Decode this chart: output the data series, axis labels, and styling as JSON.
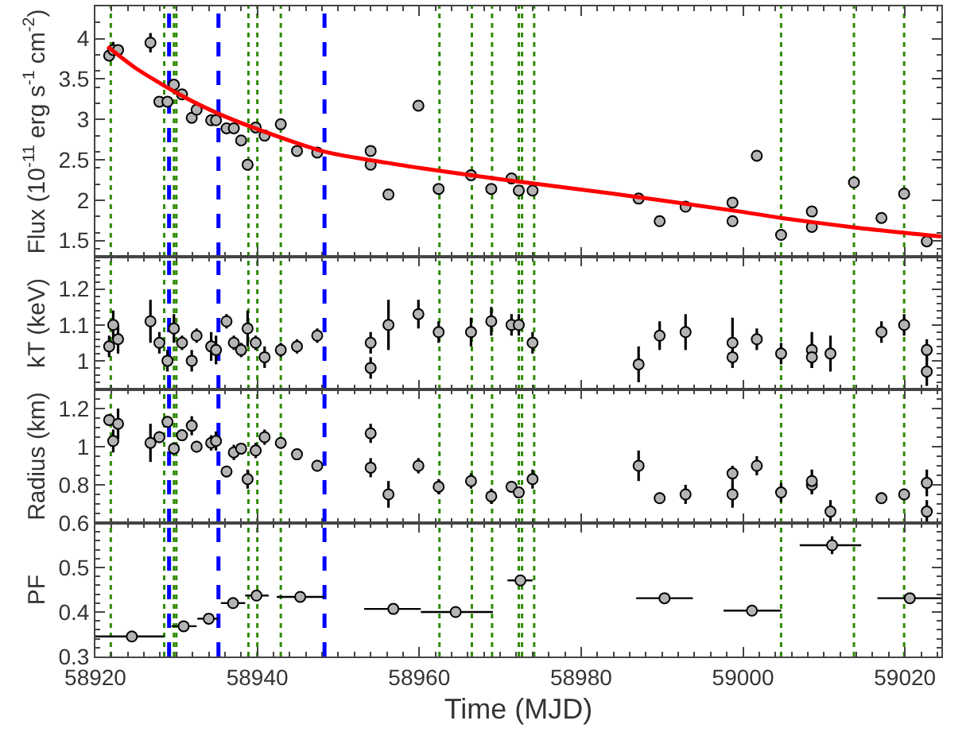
{
  "chart_data": [
    {
      "type": "scatter",
      "ylabel": "Flux (10$^{-11}$ erg s$^{-1}$ cm$^{-2}$)",
      "xlim": [
        58920,
        59024.5
      ],
      "xticks": [
        58920,
        58940,
        58960,
        58980,
        59000,
        59020
      ],
      "ylim": [
        1.3,
        4.4
      ],
      "yticks": [
        1.5,
        2,
        2.5,
        3,
        3.5,
        4
      ],
      "tick_labels": "y",
      "marker": "circle",
      "grid": false,
      "series": [
        {
          "color": "#b4b4b4",
          "x": [
            58921.7,
            58922.2,
            58922.8,
            58926.8,
            58927.9,
            58928.9,
            58929.7,
            58930.7,
            58931.9,
            58932.5,
            58934.3,
            58934.9,
            58936.2,
            58937.1,
            58938.0,
            58938.8,
            58939.8,
            58940.9,
            58942.9,
            58944.9,
            58947.4,
            58954.0,
            58954.0,
            58956.2,
            58959.9,
            58962.4,
            58966.4,
            58968.9,
            58971.4,
            58972.3,
            58974.0,
            58987.1,
            58989.7,
            58992.9,
            58998.7,
            58998.7,
            59001.7,
            59004.7,
            59008.5,
            59008.5,
            59013.7,
            59017.1,
            59019.9,
            59022.7
          ],
          "values": [
            3.79,
            3.86,
            3.86,
            3.95,
            3.22,
            3.22,
            3.43,
            3.31,
            3.02,
            3.12,
            2.99,
            2.99,
            2.89,
            2.89,
            2.74,
            2.44,
            2.9,
            2.8,
            2.94,
            2.61,
            2.59,
            2.61,
            2.44,
            2.07,
            3.17,
            2.14,
            2.31,
            2.14,
            2.27,
            2.12,
            2.12,
            2.02,
            1.74,
            1.92,
            1.97,
            1.74,
            2.55,
            1.57,
            1.86,
            1.67,
            2.22,
            1.78,
            2.08,
            1.49
          ],
          "errors": [
            0.03,
            0.1,
            0.05,
            0.12,
            0.06,
            0.03,
            0.04,
            0.03,
            0.04,
            0.03,
            0.03,
            0.03,
            0.03,
            0.03,
            0.03,
            0.05,
            0.03,
            0.03,
            0.04,
            0.03,
            0.03,
            0.03,
            0.04,
            0.07,
            0.05,
            0.03,
            0.04,
            0.03,
            0.04,
            0.03,
            0.03,
            0.04,
            0.03,
            0.03,
            0.03,
            0.04,
            0.03,
            0.03,
            0.03,
            0.03,
            0.04,
            0.03,
            0.03,
            0.03
          ]
        },
        {
          "type": "line",
          "color": "#ff0000",
          "marker": "none",
          "line_style": "solid",
          "x": [
            58921.5,
            58924.9,
            58930,
            58935,
            58940,
            58948.3,
            58960,
            58970,
            58984,
            58999.6,
            59004.7,
            59014,
            59024.5
          ],
          "values": [
            3.9,
            3.64,
            3.33,
            3.08,
            2.88,
            2.6,
            2.4,
            2.26,
            2.08,
            1.86,
            1.78,
            1.66,
            1.55
          ]
        }
      ],
      "ref_lines": [
        {
          "axis": "x",
          "value": 58921.9,
          "color": "#2e8b00",
          "line_style": "dotted"
        },
        {
          "axis": "x",
          "value": 58928.5,
          "color": "#2e8b00",
          "line_style": "dotted"
        },
        {
          "axis": "x",
          "value": 58929.7,
          "color": "#2e8b00",
          "line_style": "dotted"
        },
        {
          "axis": "x",
          "value": 58930.0,
          "color": "#2e8b00",
          "line_style": "dotted"
        },
        {
          "axis": "x",
          "value": 58938.9,
          "color": "#2e8b00",
          "line_style": "dotted"
        },
        {
          "axis": "x",
          "value": 58940.0,
          "color": "#2e8b00",
          "line_style": "dotted"
        },
        {
          "axis": "x",
          "value": 58942.9,
          "color": "#2e8b00",
          "line_style": "dotted"
        },
        {
          "axis": "x",
          "value": 58962.5,
          "color": "#2e8b00",
          "line_style": "dotted"
        },
        {
          "axis": "x",
          "value": 58966.5,
          "color": "#2e8b00",
          "line_style": "dotted"
        },
        {
          "axis": "x",
          "value": 58969.0,
          "color": "#2e8b00",
          "line_style": "dotted"
        },
        {
          "axis": "x",
          "value": 58972.3,
          "color": "#2e8b00",
          "line_style": "dotted"
        },
        {
          "axis": "x",
          "value": 58972.7,
          "color": "#2e8b00",
          "line_style": "dotted"
        },
        {
          "axis": "x",
          "value": 58974.2,
          "color": "#2e8b00",
          "line_style": "dotted"
        },
        {
          "axis": "x",
          "value": 59004.7,
          "color": "#2e8b00",
          "line_style": "dotted"
        },
        {
          "axis": "x",
          "value": 59013.7,
          "color": "#2e8b00",
          "line_style": "dotted"
        },
        {
          "axis": "x",
          "value": 59019.9,
          "color": "#2e8b00",
          "line_style": "dotted"
        },
        {
          "axis": "x",
          "value": 58929.1,
          "color": "#0000ff",
          "line_style": "dashed"
        },
        {
          "axis": "x",
          "value": 58935.2,
          "color": "#0000ff",
          "line_style": "dashed"
        },
        {
          "axis": "x",
          "value": 58948.3,
          "color": "#0000ff",
          "line_style": "dashed"
        }
      ]
    },
    {
      "type": "scatter",
      "ylabel": "kT (keV)",
      "xlim": [
        58920,
        59024.5
      ],
      "xticks": [
        58920,
        58940,
        58960,
        58980,
        59000,
        59020
      ],
      "ylim": [
        0.92,
        1.29
      ],
      "yticks": [
        1,
        1.1,
        1.2
      ],
      "tick_labels": "y",
      "marker": "circle",
      "grid": false,
      "series": [
        {
          "color": "#b4b4b4",
          "x": [
            58921.7,
            58922.2,
            58922.8,
            58926.8,
            58927.9,
            58928.9,
            58929.7,
            58930.7,
            58931.9,
            58932.5,
            58934.3,
            58934.9,
            58936.2,
            58937.1,
            58938.0,
            58938.8,
            58939.8,
            58940.9,
            58942.9,
            58944.9,
            58947.4,
            58954.0,
            58954.0,
            58956.2,
            58959.9,
            58962.4,
            58966.4,
            58968.9,
            58971.4,
            58972.3,
            58974.0,
            58987.1,
            58989.7,
            58992.9,
            58998.7,
            58998.7,
            59001.7,
            59004.7,
            59008.5,
            59008.5,
            59010.8,
            59017.1,
            59019.9,
            59022.7,
            59022.7
          ],
          "values": [
            1.04,
            1.1,
            1.06,
            1.11,
            1.05,
            1.0,
            1.09,
            1.05,
            1.0,
            1.07,
            1.04,
            1.03,
            1.11,
            1.05,
            1.03,
            1.09,
            1.05,
            1.01,
            1.03,
            1.04,
            1.07,
            1.05,
            0.98,
            1.1,
            1.13,
            1.08,
            1.08,
            1.11,
            1.1,
            1.1,
            1.05,
            0.99,
            1.07,
            1.08,
            1.05,
            1.01,
            1.06,
            1.02,
            1.03,
            1.01,
            1.02,
            1.08,
            1.1,
            1.03,
            0.97
          ],
          "errors": [
            0.03,
            0.04,
            0.04,
            0.06,
            0.03,
            0.03,
            0.04,
            0.02,
            0.03,
            0.02,
            0.04,
            0.04,
            0.02,
            0.02,
            0.02,
            0.05,
            0.02,
            0.03,
            0.02,
            0.02,
            0.02,
            0.03,
            0.03,
            0.07,
            0.04,
            0.03,
            0.04,
            0.04,
            0.03,
            0.03,
            0.03,
            0.05,
            0.04,
            0.05,
            0.07,
            0.02,
            0.03,
            0.03,
            0.05,
            0.03,
            0.05,
            0.03,
            0.03,
            0.03,
            0.04
          ]
        }
      ],
      "ref_lines": [
        {
          "axis": "x",
          "value": 58921.9,
          "color": "#2e8b00",
          "line_style": "dotted"
        },
        {
          "axis": "x",
          "value": 58928.5,
          "color": "#2e8b00",
          "line_style": "dotted"
        },
        {
          "axis": "x",
          "value": 58929.7,
          "color": "#2e8b00",
          "line_style": "dotted"
        },
        {
          "axis": "x",
          "value": 58930.0,
          "color": "#2e8b00",
          "line_style": "dotted"
        },
        {
          "axis": "x",
          "value": 58938.9,
          "color": "#2e8b00",
          "line_style": "dotted"
        },
        {
          "axis": "x",
          "value": 58940.0,
          "color": "#2e8b00",
          "line_style": "dotted"
        },
        {
          "axis": "x",
          "value": 58942.9,
          "color": "#2e8b00",
          "line_style": "dotted"
        },
        {
          "axis": "x",
          "value": 58962.5,
          "color": "#2e8b00",
          "line_style": "dotted"
        },
        {
          "axis": "x",
          "value": 58966.5,
          "color": "#2e8b00",
          "line_style": "dotted"
        },
        {
          "axis": "x",
          "value": 58969.0,
          "color": "#2e8b00",
          "line_style": "dotted"
        },
        {
          "axis": "x",
          "value": 58972.3,
          "color": "#2e8b00",
          "line_style": "dotted"
        },
        {
          "axis": "x",
          "value": 58972.7,
          "color": "#2e8b00",
          "line_style": "dotted"
        },
        {
          "axis": "x",
          "value": 58974.2,
          "color": "#2e8b00",
          "line_style": "dotted"
        },
        {
          "axis": "x",
          "value": 59004.7,
          "color": "#2e8b00",
          "line_style": "dotted"
        },
        {
          "axis": "x",
          "value": 59013.7,
          "color": "#2e8b00",
          "line_style": "dotted"
        },
        {
          "axis": "x",
          "value": 59019.9,
          "color": "#2e8b00",
          "line_style": "dotted"
        },
        {
          "axis": "x",
          "value": 58929.1,
          "color": "#0000ff",
          "line_style": "dashed"
        },
        {
          "axis": "x",
          "value": 58935.2,
          "color": "#0000ff",
          "line_style": "dashed"
        },
        {
          "axis": "x",
          "value": 58948.3,
          "color": "#0000ff",
          "line_style": "dashed"
        }
      ]
    },
    {
      "type": "scatter",
      "ylabel": "Radius (km)",
      "xlim": [
        58920,
        59024.5
      ],
      "xticks": [
        58920,
        58940,
        58960,
        58980,
        59000,
        59020
      ],
      "ylim": [
        0.6,
        1.3
      ],
      "yticks": [
        0.6,
        0.8,
        1,
        1.2
      ],
      "tick_labels": "y",
      "marker": "circle",
      "grid": false,
      "series": [
        {
          "color": "#b4b4b4",
          "x": [
            58921.7,
            58922.2,
            58922.8,
            58926.8,
            58927.9,
            58928.9,
            58929.7,
            58930.7,
            58931.9,
            58932.5,
            58934.3,
            58934.9,
            58936.2,
            58937.1,
            58938.0,
            58938.8,
            58939.8,
            58940.9,
            58942.9,
            58944.9,
            58947.4,
            58954.0,
            58954.0,
            58956.2,
            58959.9,
            58962.4,
            58966.4,
            58968.9,
            58971.4,
            58972.3,
            58974.0,
            58987.1,
            58989.7,
            58992.9,
            58998.7,
            58998.7,
            59001.7,
            59004.7,
            59008.5,
            59008.5,
            59010.8,
            59017.1,
            59019.9,
            59022.7,
            59022.7
          ],
          "values": [
            1.14,
            1.03,
            1.12,
            1.02,
            1.05,
            1.13,
            0.99,
            1.06,
            1.11,
            1.0,
            1.02,
            1.03,
            0.87,
            0.97,
            0.99,
            0.83,
            0.98,
            1.05,
            1.02,
            0.96,
            0.9,
            1.07,
            0.89,
            0.75,
            0.9,
            0.79,
            0.82,
            0.74,
            0.79,
            0.76,
            0.83,
            0.9,
            0.73,
            0.75,
            0.86,
            0.75,
            0.9,
            0.76,
            0.8,
            0.82,
            0.66,
            0.73,
            0.75,
            0.81,
            0.66
          ],
          "errors": [
            0.03,
            0.06,
            0.08,
            0.1,
            0.03,
            0.03,
            0.03,
            0.03,
            0.05,
            0.03,
            0.04,
            0.05,
            0.03,
            0.04,
            0.03,
            0.05,
            0.04,
            0.04,
            0.03,
            0.03,
            0.03,
            0.05,
            0.05,
            0.07,
            0.04,
            0.04,
            0.04,
            0.04,
            0.03,
            0.03,
            0.05,
            0.08,
            0.03,
            0.05,
            0.04,
            0.07,
            0.05,
            0.05,
            0.05,
            0.06,
            0.06,
            0.03,
            0.03,
            0.07,
            0.06
          ]
        }
      ],
      "ref_lines": [
        {
          "axis": "x",
          "value": 58921.9,
          "color": "#2e8b00",
          "line_style": "dotted"
        },
        {
          "axis": "x",
          "value": 58928.5,
          "color": "#2e8b00",
          "line_style": "dotted"
        },
        {
          "axis": "x",
          "value": 58929.7,
          "color": "#2e8b00",
          "line_style": "dotted"
        },
        {
          "axis": "x",
          "value": 58930.0,
          "color": "#2e8b00",
          "line_style": "dotted"
        },
        {
          "axis": "x",
          "value": 58938.9,
          "color": "#2e8b00",
          "line_style": "dotted"
        },
        {
          "axis": "x",
          "value": 58940.0,
          "color": "#2e8b00",
          "line_style": "dotted"
        },
        {
          "axis": "x",
          "value": 58942.9,
          "color": "#2e8b00",
          "line_style": "dotted"
        },
        {
          "axis": "x",
          "value": 58962.5,
          "color": "#2e8b00",
          "line_style": "dotted"
        },
        {
          "axis": "x",
          "value": 58966.5,
          "color": "#2e8b00",
          "line_style": "dotted"
        },
        {
          "axis": "x",
          "value": 58969.0,
          "color": "#2e8b00",
          "line_style": "dotted"
        },
        {
          "axis": "x",
          "value": 58972.3,
          "color": "#2e8b00",
          "line_style": "dotted"
        },
        {
          "axis": "x",
          "value": 58972.7,
          "color": "#2e8b00",
          "line_style": "dotted"
        },
        {
          "axis": "x",
          "value": 58974.2,
          "color": "#2e8b00",
          "line_style": "dotted"
        },
        {
          "axis": "x",
          "value": 59004.7,
          "color": "#2e8b00",
          "line_style": "dotted"
        },
        {
          "axis": "x",
          "value": 59013.7,
          "color": "#2e8b00",
          "line_style": "dotted"
        },
        {
          "axis": "x",
          "value": 59019.9,
          "color": "#2e8b00",
          "line_style": "dotted"
        },
        {
          "axis": "x",
          "value": 58929.1,
          "color": "#0000ff",
          "line_style": "dashed"
        },
        {
          "axis": "x",
          "value": 58935.2,
          "color": "#0000ff",
          "line_style": "dashed"
        },
        {
          "axis": "x",
          "value": 58948.3,
          "color": "#0000ff",
          "line_style": "dashed"
        }
      ]
    },
    {
      "type": "scatter",
      "xlabel": "Time (MJD)",
      "ylabel": "PF",
      "xlim": [
        58920,
        59024.5
      ],
      "xticks": [
        58920,
        58940,
        58960,
        58980,
        59000,
        59020
      ],
      "ylim": [
        0.3,
        0.6
      ],
      "yticks": [
        0.3,
        0.4,
        0.5
      ],
      "marker": "circle",
      "grid": false,
      "series": [
        {
          "color": "#b4b4b4",
          "x": [
            58924.5,
            58930.9,
            58934.0,
            58937.0,
            58939.9,
            58945.3,
            58956.8,
            58964.5,
            58972.5,
            58990.3,
            59001.1,
            59011.0,
            59020.6
          ],
          "values": [
            0.345,
            0.368,
            0.385,
            0.42,
            0.437,
            0.434,
            0.407,
            0.4,
            0.471,
            0.431,
            0.403,
            0.55,
            0.431
          ],
          "errors": [
            0.004,
            0.004,
            0.004,
            0.005,
            0.006,
            0.005,
            0.008,
            0.007,
            0.008,
            0.01,
            0.008,
            0.02,
            0.008
          ],
          "xerrors": [
            [
              58920,
              58928.5
            ],
            [
              58929.4,
              58932.5
            ],
            [
              58932.6,
              58935.2
            ],
            [
              58935.5,
              58938.5
            ],
            [
              58938.5,
              58941.4
            ],
            [
              58942.4,
              58948.3
            ],
            [
              58953.2,
              58960.2
            ],
            [
              58960.2,
              58969.1
            ],
            [
              58970.9,
              58974.0
            ],
            [
              58986.8,
              58993.8
            ],
            [
              58997.6,
              59004.7
            ],
            [
              59007.0,
              59014.6
            ],
            [
              59016.6,
              59024.5
            ]
          ]
        }
      ],
      "ref_lines": [
        {
          "axis": "x",
          "value": 58921.9,
          "color": "#2e8b00",
          "line_style": "dotted"
        },
        {
          "axis": "x",
          "value": 58928.5,
          "color": "#2e8b00",
          "line_style": "dotted"
        },
        {
          "axis": "x",
          "value": 58929.7,
          "color": "#2e8b00",
          "line_style": "dotted"
        },
        {
          "axis": "x",
          "value": 58930.0,
          "color": "#2e8b00",
          "line_style": "dotted"
        },
        {
          "axis": "x",
          "value": 58938.9,
          "color": "#2e8b00",
          "line_style": "dotted"
        },
        {
          "axis": "x",
          "value": 58940.0,
          "color": "#2e8b00",
          "line_style": "dotted"
        },
        {
          "axis": "x",
          "value": 58942.9,
          "color": "#2e8b00",
          "line_style": "dotted"
        },
        {
          "axis": "x",
          "value": 58962.5,
          "color": "#2e8b00",
          "line_style": "dotted"
        },
        {
          "axis": "x",
          "value": 58966.5,
          "color": "#2e8b00",
          "line_style": "dotted"
        },
        {
          "axis": "x",
          "value": 58969.0,
          "color": "#2e8b00",
          "line_style": "dotted"
        },
        {
          "axis": "x",
          "value": 58972.3,
          "color": "#2e8b00",
          "line_style": "dotted"
        },
        {
          "axis": "x",
          "value": 58972.7,
          "color": "#2e8b00",
          "line_style": "dotted"
        },
        {
          "axis": "x",
          "value": 58974.2,
          "color": "#2e8b00",
          "line_style": "dotted"
        },
        {
          "axis": "x",
          "value": 59004.7,
          "color": "#2e8b00",
          "line_style": "dotted"
        },
        {
          "axis": "x",
          "value": 59013.7,
          "color": "#2e8b00",
          "line_style": "dotted"
        },
        {
          "axis": "x",
          "value": 59019.9,
          "color": "#2e8b00",
          "line_style": "dotted"
        },
        {
          "axis": "x",
          "value": 58929.1,
          "color": "#0000ff",
          "line_style": "dashed"
        },
        {
          "axis": "x",
          "value": 58935.2,
          "color": "#0000ff",
          "line_style": "dashed"
        },
        {
          "axis": "x",
          "value": 58948.3,
          "color": "#0000ff",
          "line_style": "dashed"
        }
      ]
    }
  ]
}
